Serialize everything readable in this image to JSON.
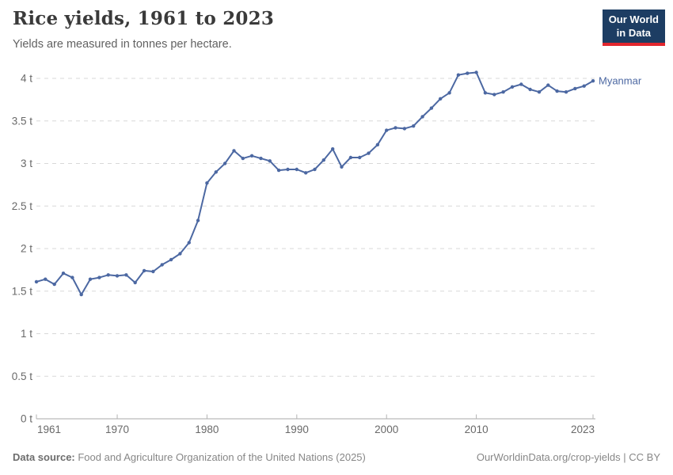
{
  "header": {
    "title": "Rice yields, 1961 to 2023",
    "subtitle": "Yields are measured in tonnes per hectare.",
    "logo": {
      "line1": "Our World",
      "line2": "in Data"
    }
  },
  "footer": {
    "datasource_label": "Data source:",
    "datasource_text": " Food and Agriculture Organization of the United Nations (2025)",
    "credit": "OurWorldinData.org/crop-yields | CC BY"
  },
  "colors": {
    "line": "#4c68a2",
    "grid": "#d8d8d8",
    "axis_line": "#a8a8a8",
    "tick": "#b3b3b3",
    "axis_text": "#696969",
    "logo_bg": "#1d3d63",
    "logo_red": "#e2262d",
    "title_text": "#3a3a3a",
    "footer_text": "#878787"
  },
  "chart_data": {
    "type": "line",
    "title": "Rice yields, 1961 to 2023",
    "subtitle": "Yields are measured in tonnes per hectare.",
    "unit": "tonnes per hectare",
    "xlim": [
      1961,
      2023
    ],
    "ylim": [
      0,
      4
    ],
    "grid": true,
    "legend_position": "end-of-line",
    "ytick_values": [
      0,
      0.5,
      1,
      1.5,
      2,
      2.5,
      3,
      3.5,
      4
    ],
    "ytick_labels": [
      "0 t",
      "0.5 t",
      "1 t",
      "1.5 t",
      "2 t",
      "2.5 t",
      "3 t",
      "3.5 t",
      "4 t"
    ],
    "xtick_years": [
      1961,
      1970,
      1980,
      1990,
      2000,
      2010,
      2023
    ],
    "series": [
      {
        "name": "Myanmar",
        "x": [
          1961,
          1962,
          1963,
          1964,
          1965,
          1966,
          1967,
          1968,
          1969,
          1970,
          1971,
          1972,
          1973,
          1974,
          1975,
          1976,
          1977,
          1978,
          1979,
          1980,
          1981,
          1982,
          1983,
          1984,
          1985,
          1986,
          1987,
          1988,
          1989,
          1990,
          1991,
          1992,
          1993,
          1994,
          1995,
          1996,
          1997,
          1998,
          1999,
          2000,
          2001,
          2002,
          2003,
          2004,
          2005,
          2006,
          2007,
          2008,
          2009,
          2010,
          2011,
          2012,
          2013,
          2014,
          2015,
          2016,
          2017,
          2018,
          2019,
          2020,
          2021,
          2022,
          2023
        ],
        "values": [
          1.61,
          1.64,
          1.58,
          1.71,
          1.66,
          1.46,
          1.64,
          1.66,
          1.69,
          1.68,
          1.69,
          1.6,
          1.74,
          1.73,
          1.81,
          1.87,
          1.94,
          2.07,
          2.33,
          2.77,
          2.9,
          3.0,
          3.15,
          3.06,
          3.09,
          3.06,
          3.03,
          2.92,
          2.93,
          2.93,
          2.89,
          2.93,
          3.04,
          3.17,
          2.96,
          3.07,
          3.07,
          3.12,
          3.22,
          3.39,
          3.42,
          3.41,
          3.44,
          3.55,
          3.65,
          3.76,
          3.83,
          4.04,
          4.06,
          4.07,
          3.83,
          3.81,
          3.84,
          3.9,
          3.93,
          3.87,
          3.84,
          3.92,
          3.85,
          3.84,
          3.88,
          3.91,
          3.97
        ]
      }
    ]
  }
}
